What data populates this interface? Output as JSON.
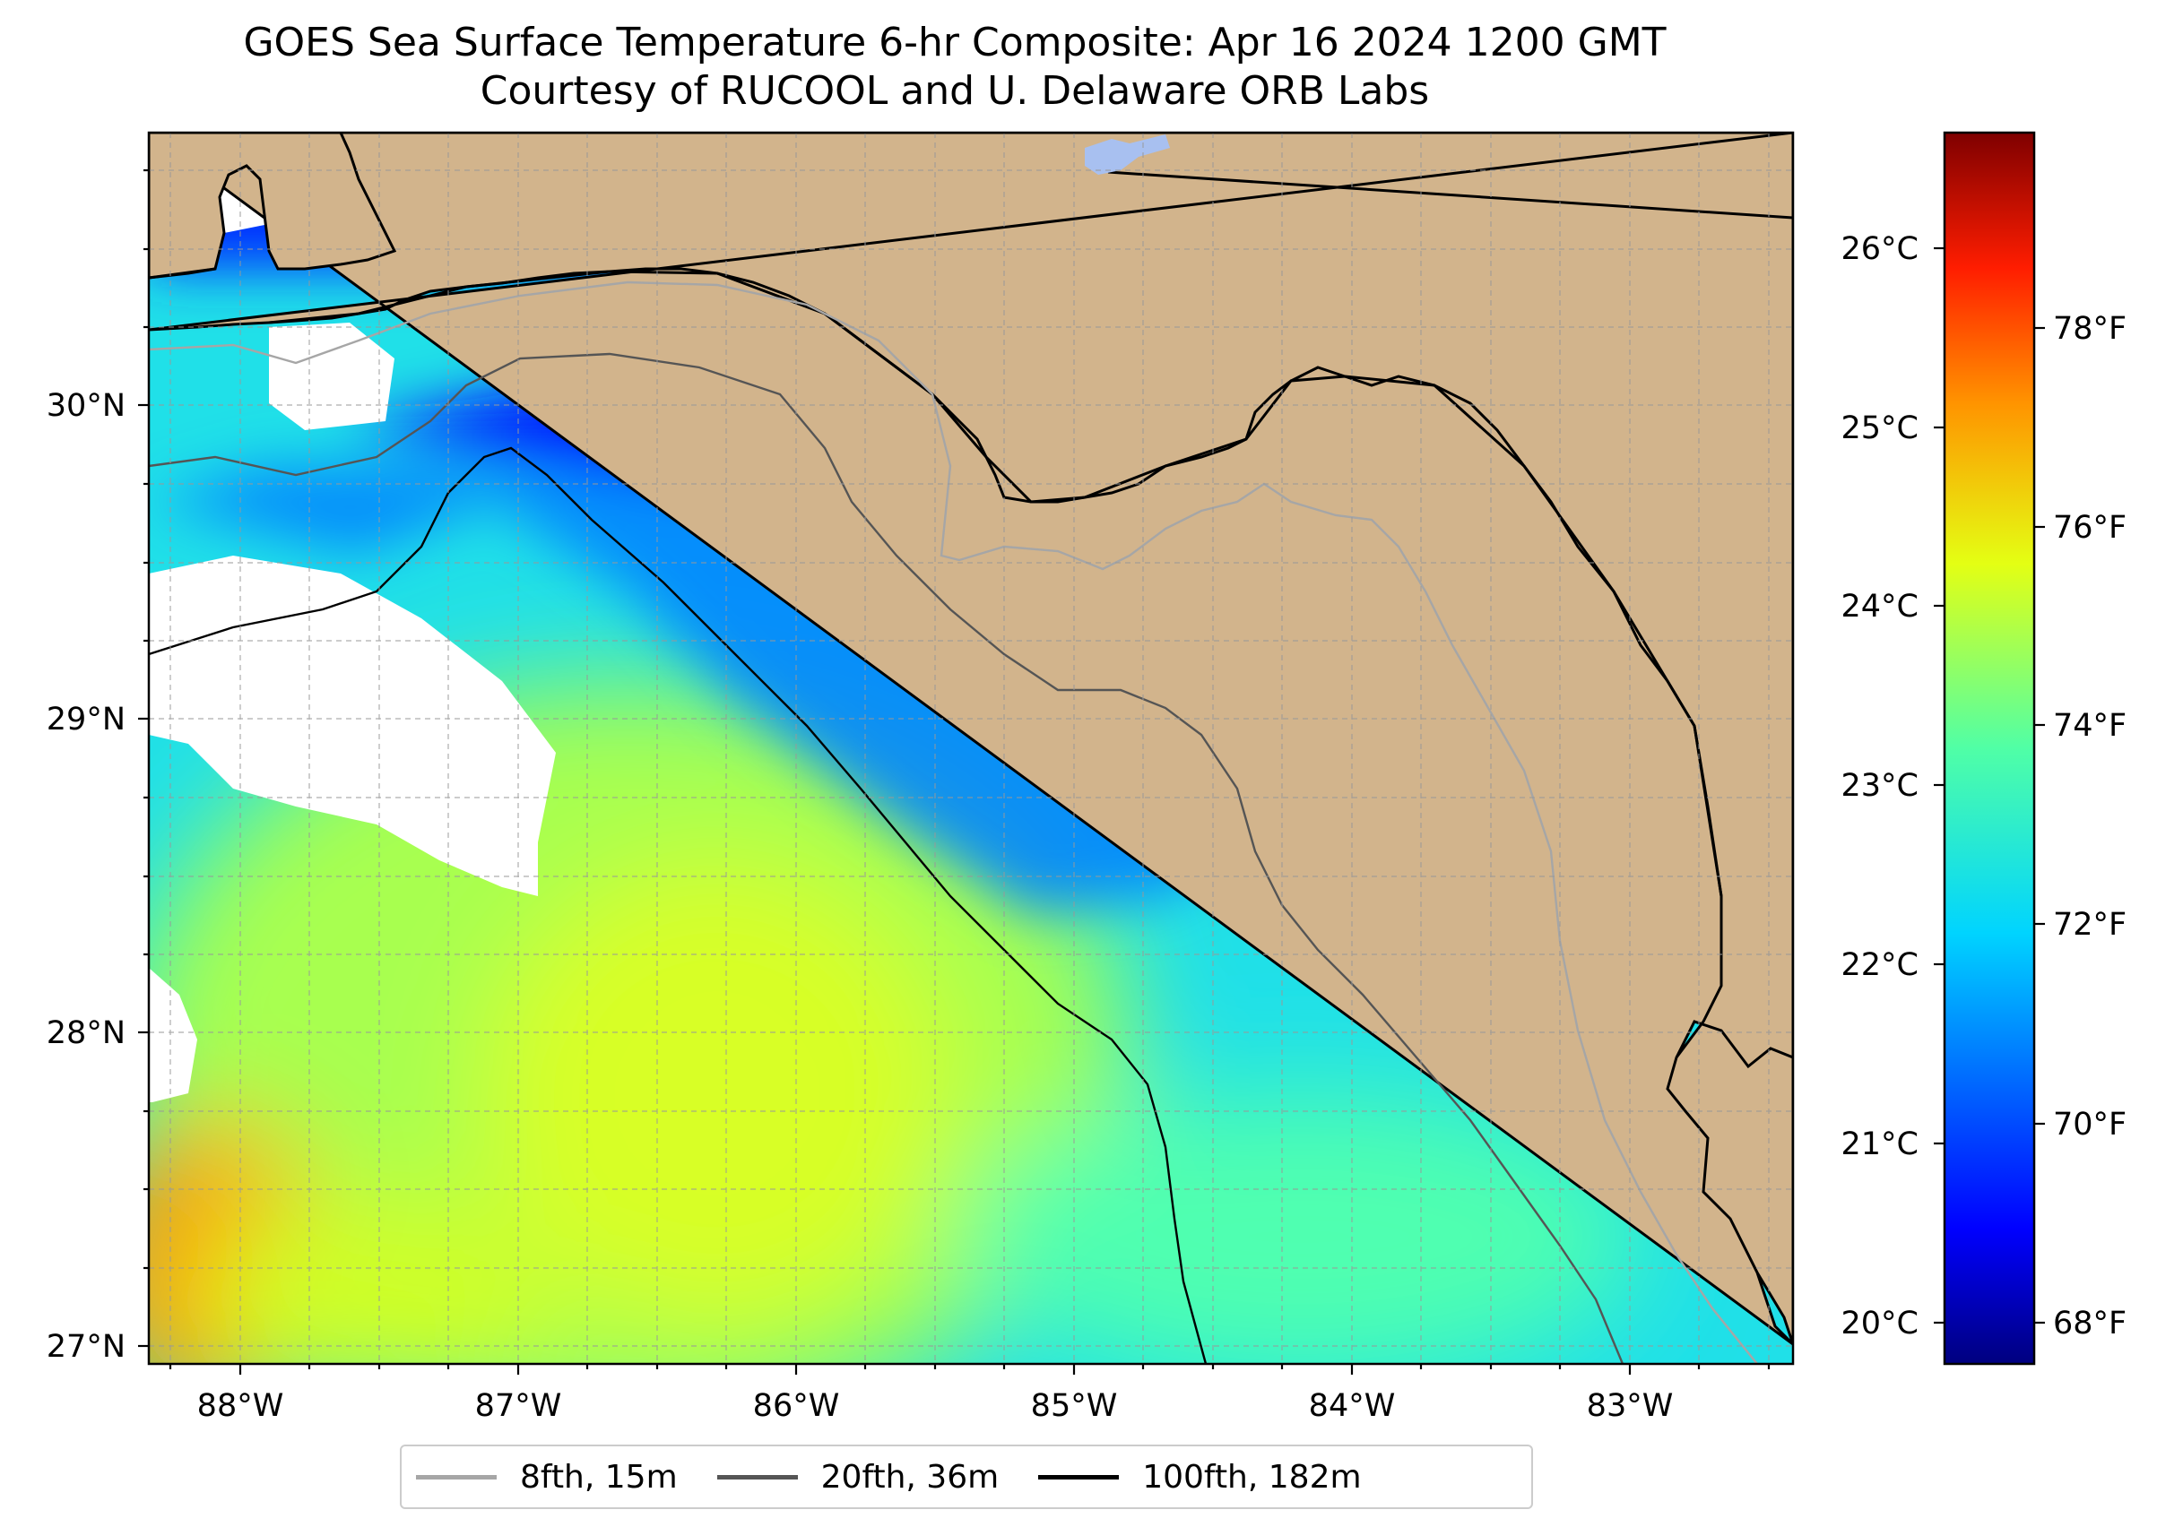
{
  "title": {
    "line1": "GOES Sea Surface Temperature 6-hr Composite: Apr 16 2024 1200 GMT",
    "line2": "Courtesy of RUCOOL and U. Delaware ORB Labs"
  },
  "map": {
    "lat_ticks": [
      "30°N",
      "29°N",
      "28°N",
      "27°N"
    ],
    "lon_ticks": [
      "88°W",
      "87°W",
      "86°W",
      "85°W",
      "84°W",
      "83°W"
    ],
    "extent": {
      "lon": [
        -88.33,
        -82.4
      ],
      "lat": [
        26.93,
        30.84
      ]
    },
    "colors": {
      "land": "#d2b48c",
      "coastline": "#000000",
      "no_data": "#ffffff"
    }
  },
  "colorbar": {
    "celsius_labels": [
      "26°C",
      "25°C",
      "24°C",
      "23°C",
      "22°C",
      "21°C",
      "20°C"
    ],
    "fahrenheit_labels": [
      "78°F",
      "76°F",
      "74°F",
      "72°F",
      "70°F",
      "68°F"
    ],
    "range_f": [
      67.6,
      80.0
    ],
    "colormap": "jet"
  },
  "legend": {
    "items": [
      {
        "label": "8fth, 15m",
        "color": "#a6a6a6"
      },
      {
        "label": "20fth, 36m",
        "color": "#555555"
      },
      {
        "label": "100fth, 182m",
        "color": "#000000"
      }
    ]
  }
}
